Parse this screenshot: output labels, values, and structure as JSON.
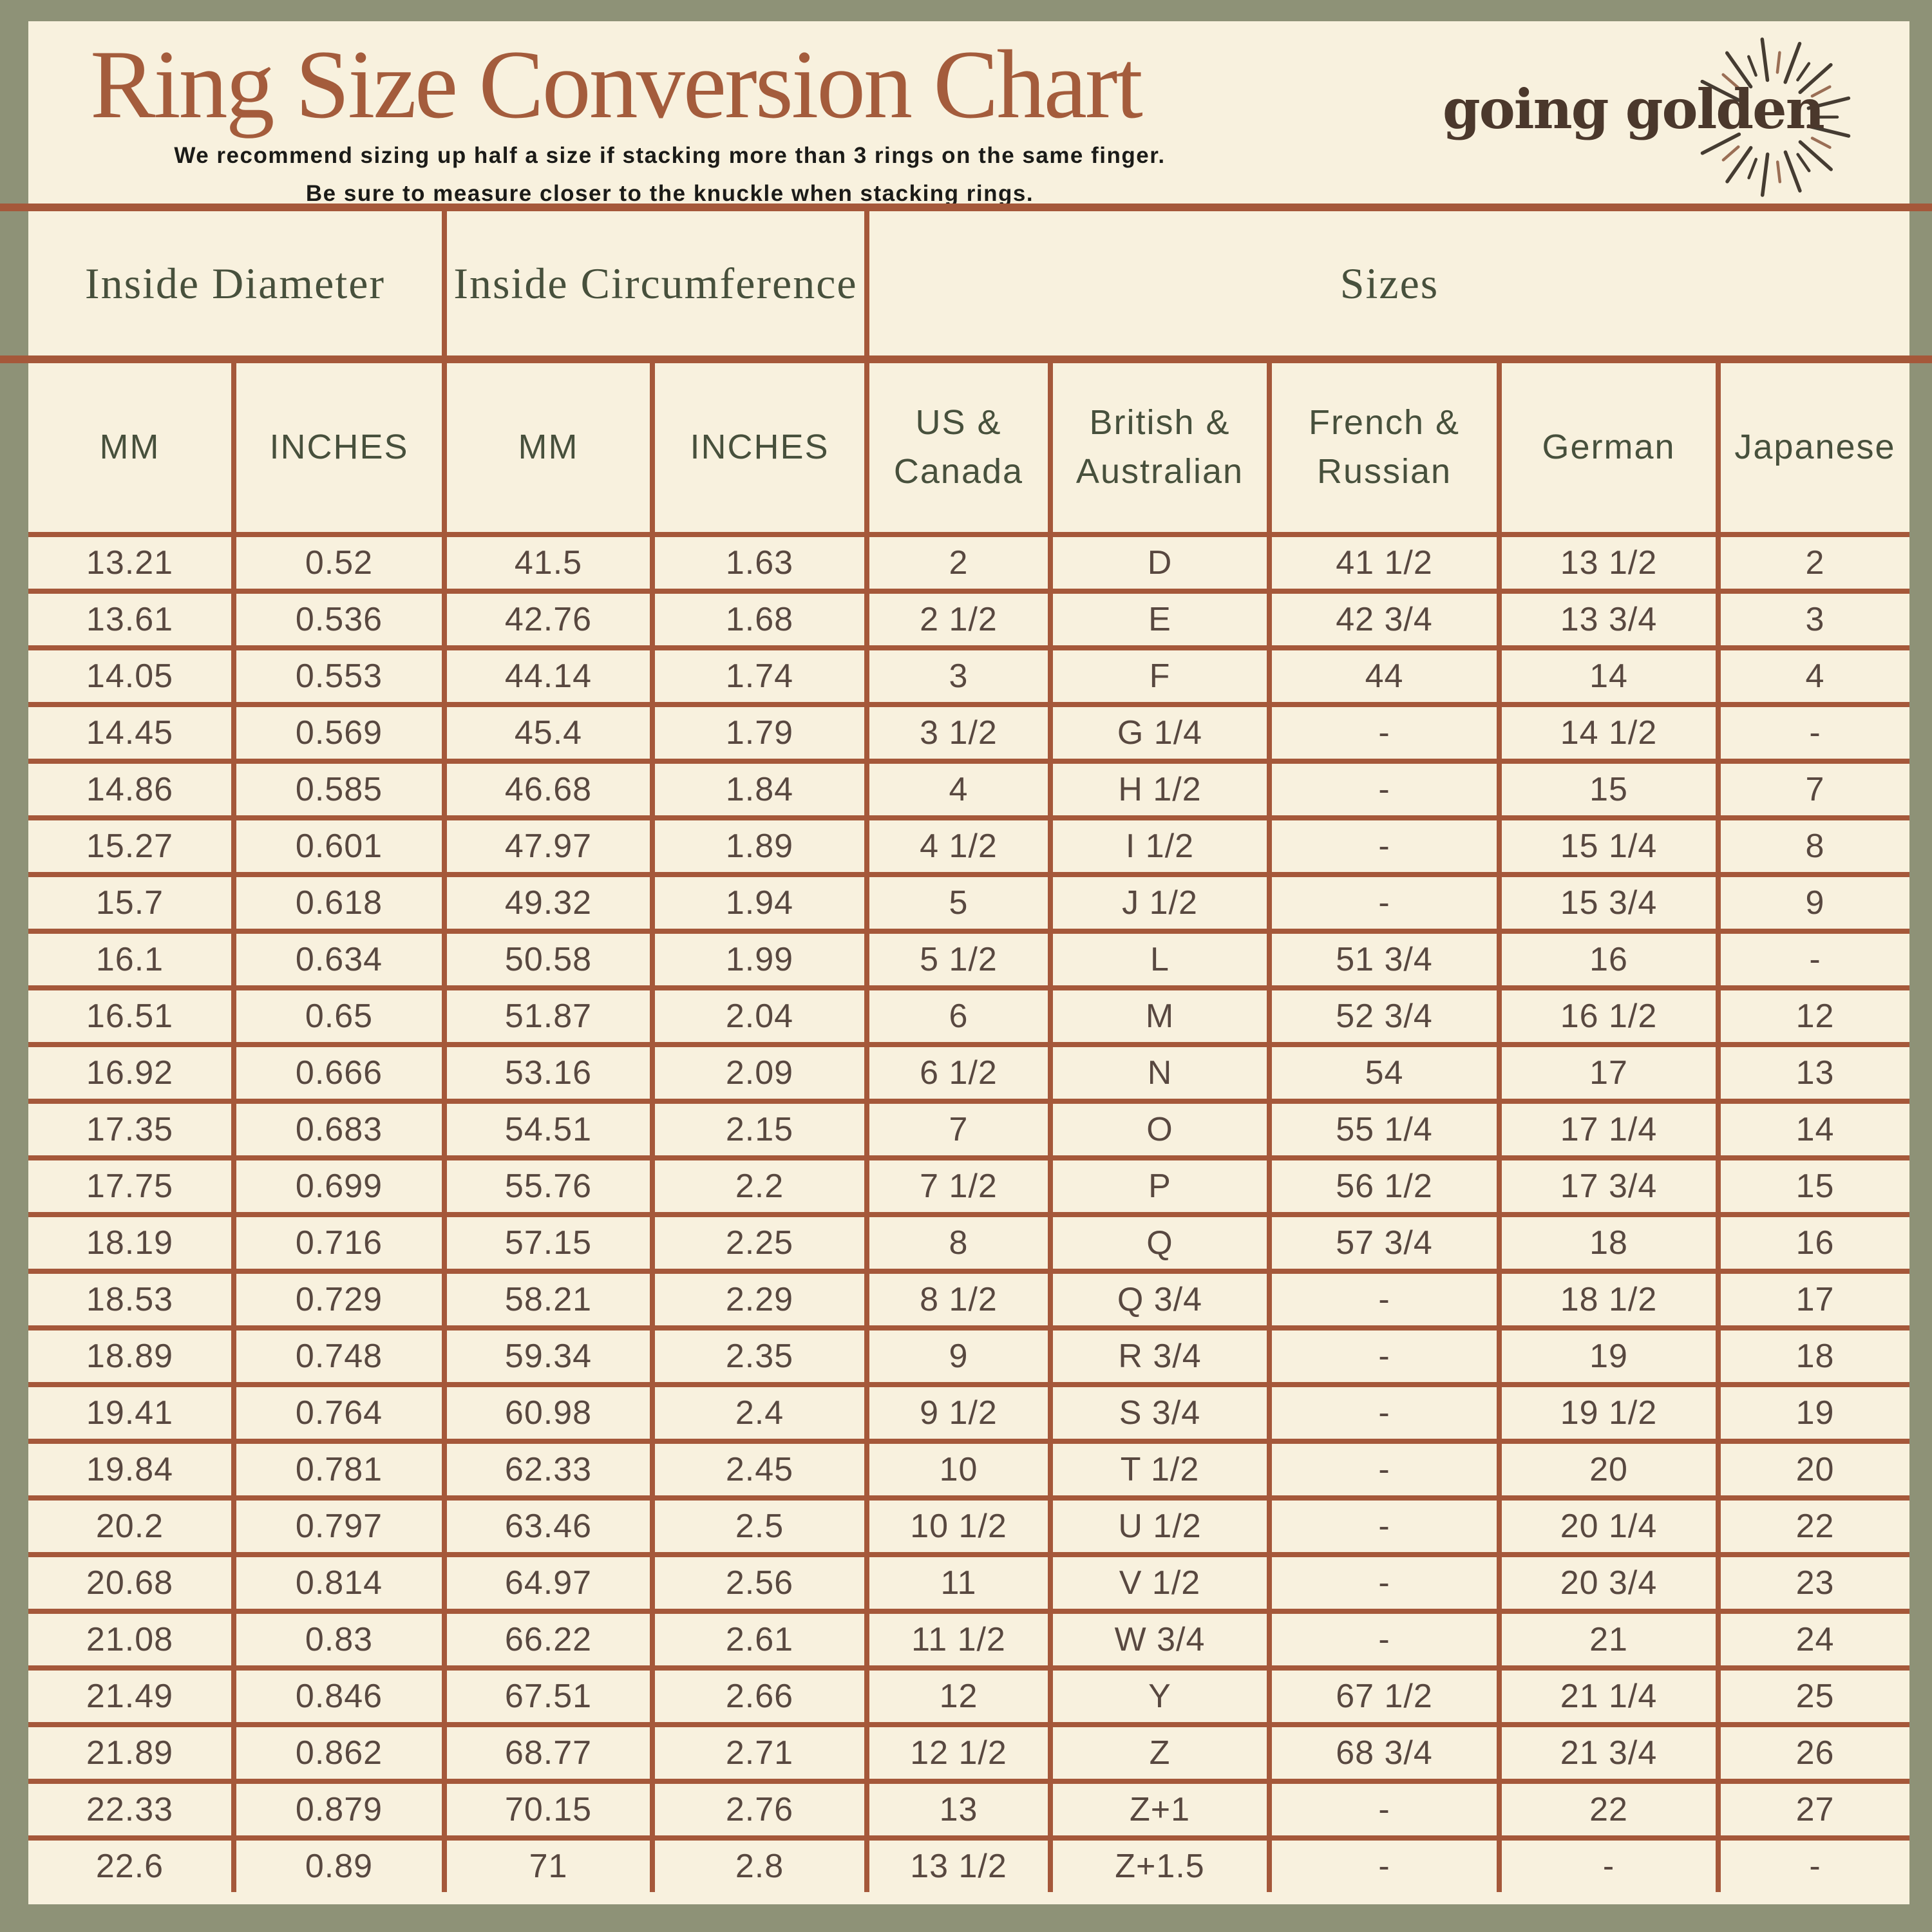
{
  "page": {
    "background_color": "#8E9277",
    "panel_color": "#F8F1DE",
    "line_color": "#A5583A"
  },
  "header": {
    "title": "Ring Size Conversion Chart",
    "title_color": "#A45C3C",
    "subtitle_line1": "We recommend sizing up half a size if stacking more than 3 rings on the same finger.",
    "subtitle_line2": "Be sure to measure closer to the knuckle when stacking rings."
  },
  "brand": {
    "logo_text": "going golden",
    "logo_color": "#4B382C",
    "ray_color": "#453C32",
    "ray_accent": "#9A6E55"
  },
  "table": {
    "section_headers": [
      "Inside Diameter",
      "Inside Circumference",
      "Sizes"
    ],
    "column_headers": [
      "MM",
      "INCHES",
      "MM",
      "INCHES",
      "US &\nCanada",
      "British &\nAustralian",
      "French &\nRussian",
      "German",
      "Japanese"
    ],
    "rows": [
      [
        "13.21",
        "0.52",
        "41.5",
        "1.63",
        "2",
        "D",
        "41 1/2",
        "13 1/2",
        "2"
      ],
      [
        "13.61",
        "0.536",
        "42.76",
        "1.68",
        "2 1/2",
        "E",
        "42 3/4",
        "13 3/4",
        "3"
      ],
      [
        "14.05",
        "0.553",
        "44.14",
        "1.74",
        "3",
        "F",
        "44",
        "14",
        "4"
      ],
      [
        "14.45",
        "0.569",
        "45.4",
        "1.79",
        "3 1/2",
        "G 1/4",
        "-",
        "14 1/2",
        "-"
      ],
      [
        "14.86",
        "0.585",
        "46.68",
        "1.84",
        "4",
        "H 1/2",
        "-",
        "15",
        "7"
      ],
      [
        "15.27",
        "0.601",
        "47.97",
        "1.89",
        "4 1/2",
        "I 1/2",
        "-",
        "15 1/4",
        "8"
      ],
      [
        "15.7",
        "0.618",
        "49.32",
        "1.94",
        "5",
        "J 1/2",
        "-",
        "15 3/4",
        "9"
      ],
      [
        "16.1",
        "0.634",
        "50.58",
        "1.99",
        "5 1/2",
        "L",
        "51 3/4",
        "16",
        "-"
      ],
      [
        "16.51",
        "0.65",
        "51.87",
        "2.04",
        "6",
        "M",
        "52 3/4",
        "16 1/2",
        "12"
      ],
      [
        "16.92",
        "0.666",
        "53.16",
        "2.09",
        "6 1/2",
        "N",
        "54",
        "17",
        "13"
      ],
      [
        "17.35",
        "0.683",
        "54.51",
        "2.15",
        "7",
        "O",
        "55 1/4",
        "17 1/4",
        "14"
      ],
      [
        "17.75",
        "0.699",
        "55.76",
        "2.2",
        "7 1/2",
        "P",
        "56 1/2",
        "17 3/4",
        "15"
      ],
      [
        "18.19",
        "0.716",
        "57.15",
        "2.25",
        "8",
        "Q",
        "57 3/4",
        "18",
        "16"
      ],
      [
        "18.53",
        "0.729",
        "58.21",
        "2.29",
        "8 1/2",
        "Q 3/4",
        "-",
        "18 1/2",
        "17"
      ],
      [
        "18.89",
        "0.748",
        "59.34",
        "2.35",
        "9",
        "R 3/4",
        "-",
        "19",
        "18"
      ],
      [
        "19.41",
        "0.764",
        "60.98",
        "2.4",
        "9 1/2",
        "S 3/4",
        "-",
        "19 1/2",
        "19"
      ],
      [
        "19.84",
        "0.781",
        "62.33",
        "2.45",
        "10",
        "T 1/2",
        "-",
        "20",
        "20"
      ],
      [
        "20.2",
        "0.797",
        "63.46",
        "2.5",
        "10 1/2",
        "U 1/2",
        "-",
        "20 1/4",
        "22"
      ],
      [
        "20.68",
        "0.814",
        "64.97",
        "2.56",
        "11",
        "V 1/2",
        "-",
        "20 3/4",
        "23"
      ],
      [
        "21.08",
        "0.83",
        "66.22",
        "2.61",
        "11 1/2",
        "W 3/4",
        "-",
        "21",
        "24"
      ],
      [
        "21.49",
        "0.846",
        "67.51",
        "2.66",
        "12",
        "Y",
        "67 1/2",
        "21 1/4",
        "25"
      ],
      [
        "21.89",
        "0.862",
        "68.77",
        "2.71",
        "12 1/2",
        "Z",
        "68 3/4",
        "21 3/4",
        "26"
      ],
      [
        "22.33",
        "0.879",
        "70.15",
        "2.76",
        "13",
        "Z+1",
        "-",
        "22",
        "27"
      ],
      [
        "22.6",
        "0.89",
        "71",
        "2.8",
        "13 1/2",
        "Z+1.5",
        "-",
        "-",
        "-"
      ]
    ]
  }
}
